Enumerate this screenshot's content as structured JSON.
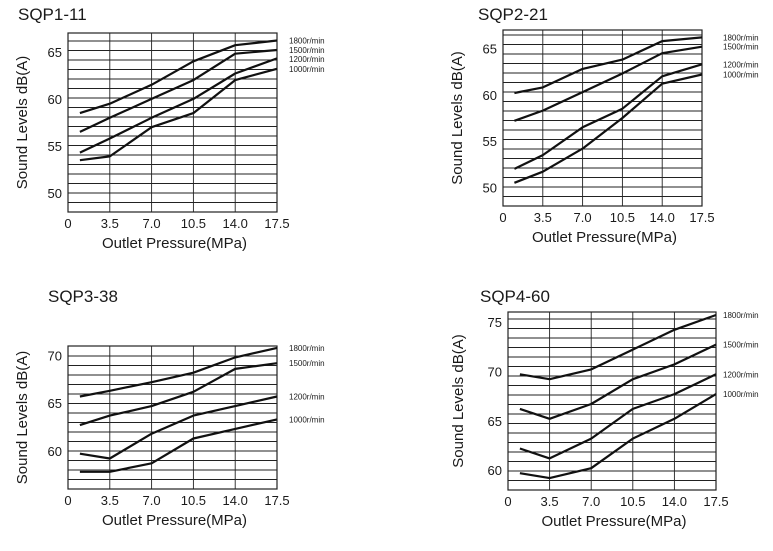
{
  "chart_data": [
    {
      "type": "line",
      "title": "SQP1-11",
      "xlabel": "Outlet Pressure(MPa)",
      "ylabel": "Sound Levels dB(A)",
      "xticks": [
        "0",
        "3.5",
        "7.0",
        "10.5",
        "14.0",
        "17.5"
      ],
      "yticks": [
        "50",
        "55",
        "60",
        "65"
      ],
      "xlim": [
        0,
        17.5
      ],
      "ylim": [
        48,
        67
      ],
      "x": [
        1,
        3.5,
        7.0,
        10.5,
        14.0,
        17.5
      ],
      "series": [
        {
          "name": "1800r/min",
          "values": [
            58.5,
            59.5,
            61.5,
            64.0,
            65.7,
            66.2
          ]
        },
        {
          "name": "1500r/min",
          "values": [
            56.5,
            58.0,
            60.0,
            62.0,
            64.8,
            65.2
          ]
        },
        {
          "name": "1200r/min",
          "values": [
            54.3,
            55.8,
            58.0,
            60.0,
            62.7,
            64.3
          ]
        },
        {
          "name": "1000r/min",
          "values": [
            53.5,
            53.9,
            57.0,
            58.5,
            62.0,
            63.2
          ]
        }
      ],
      "grid": true
    },
    {
      "type": "line",
      "title": "SQP2-21",
      "xlabel": "Outlet Pressure(MPa)",
      "ylabel": "Sound Levels dB(A)",
      "xticks": [
        "0",
        "3.5",
        "7.0",
        "10.5",
        "14.0",
        "17.5"
      ],
      "yticks": [
        "50",
        "55",
        "60",
        "65"
      ],
      "xlim": [
        0,
        17.5
      ],
      "ylim": [
        48,
        67
      ],
      "x": [
        1,
        3.5,
        7.0,
        10.5,
        14.0,
        17.5
      ],
      "series": [
        {
          "name": "1800r/min",
          "values": [
            60.2,
            60.8,
            62.8,
            63.8,
            65.8,
            66.2
          ]
        },
        {
          "name": "1500r/min",
          "values": [
            57.2,
            58.3,
            60.3,
            62.3,
            64.5,
            65.2
          ]
        },
        {
          "name": "1200r/min",
          "values": [
            52.0,
            53.5,
            56.5,
            58.5,
            62.0,
            63.3
          ]
        },
        {
          "name": "1000r/min",
          "values": [
            50.5,
            51.7,
            54.2,
            57.5,
            61.2,
            62.2
          ]
        }
      ],
      "grid": true
    },
    {
      "type": "line",
      "title": "SQP3-38",
      "xlabel": "Outlet Pressure(MPa)",
      "ylabel": "Sound Levels dB(A)",
      "xticks": [
        "0",
        "3.5",
        "7.0",
        "10.5",
        "14.0",
        "17.5"
      ],
      "yticks": [
        "60",
        "65",
        "70"
      ],
      "xlim": [
        0,
        17.5
      ],
      "ylim": [
        56,
        71
      ],
      "x": [
        1,
        3.5,
        7.0,
        10.5,
        14.0,
        17.5
      ],
      "series": [
        {
          "name": "1800r/min",
          "values": [
            65.7,
            66.3,
            67.2,
            68.2,
            69.8,
            70.8
          ]
        },
        {
          "name": "1500r/min",
          "values": [
            62.7,
            63.7,
            64.7,
            66.2,
            68.6,
            69.2
          ]
        },
        {
          "name": "1200r/min",
          "values": [
            59.7,
            59.2,
            61.8,
            63.7,
            64.7,
            65.7
          ]
        },
        {
          "name": "1000r/min",
          "values": [
            57.8,
            57.8,
            58.7,
            61.3,
            62.3,
            63.3
          ]
        }
      ],
      "grid": true
    },
    {
      "type": "line",
      "title": "SQP4-60",
      "xlabel": "Outlet Pressure(MPa)",
      "ylabel": "Sound Levels dB(A)",
      "xticks": [
        "0",
        "3.5",
        "7.0",
        "10.5",
        "14.0",
        "17.5"
      ],
      "yticks": [
        "60",
        "65",
        "70",
        "75"
      ],
      "xlim": [
        0,
        17.5
      ],
      "ylim": [
        58,
        76
      ],
      "x": [
        1,
        3.5,
        7.0,
        10.5,
        14.0,
        17.5
      ],
      "series": [
        {
          "name": "1800r/min",
          "values": [
            69.7,
            69.2,
            70.2,
            72.2,
            74.2,
            75.7
          ]
        },
        {
          "name": "1500r/min",
          "values": [
            66.2,
            65.2,
            66.7,
            69.2,
            70.7,
            72.7
          ]
        },
        {
          "name": "1200r/min",
          "values": [
            62.2,
            61.2,
            63.2,
            66.2,
            67.7,
            69.7
          ]
        },
        {
          "name": "1000r/min",
          "values": [
            59.7,
            59.2,
            60.2,
            63.2,
            65.2,
            67.7
          ]
        }
      ],
      "grid": true
    }
  ]
}
